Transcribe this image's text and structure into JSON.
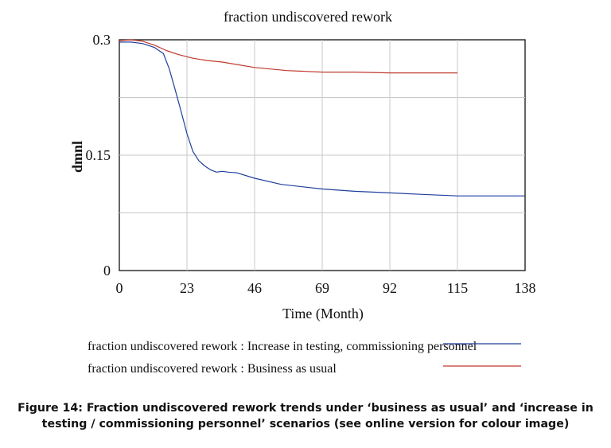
{
  "chart_data": {
    "type": "line",
    "title": "fraction undiscovered rework",
    "xlabel": "Time (Month)",
    "ylabel": "dmnl",
    "xlim": [
      0,
      138
    ],
    "ylim": [
      0,
      0.3
    ],
    "x_ticks": [
      "0",
      "23",
      "46",
      "69",
      "92",
      "115",
      "138"
    ],
    "y_ticks": [
      "0",
      "0.15",
      "0.3"
    ],
    "grid": true,
    "legend_position": "bottom",
    "series": [
      {
        "name": "fraction undiscovered rework : Increase in testing, commissioning personnel",
        "color": "#1f3f9e",
        "x": [
          0,
          4,
          8,
          12,
          15,
          17,
          19,
          21,
          23,
          25,
          27,
          29,
          31,
          33,
          35,
          37,
          40,
          46,
          55,
          69,
          80,
          92,
          103,
          115,
          126,
          138
        ],
        "y": [
          0.297,
          0.297,
          0.295,
          0.29,
          0.282,
          0.262,
          0.235,
          0.207,
          0.178,
          0.155,
          0.143,
          0.136,
          0.131,
          0.128,
          0.129,
          0.128,
          0.127,
          0.12,
          0.112,
          0.106,
          0.103,
          0.101,
          0.099,
          0.097,
          0.097,
          0.097
        ]
      },
      {
        "name": "fraction undiscovered rework : Business as usual",
        "color": "#c0392b",
        "x": [
          0,
          4,
          8,
          12,
          16,
          20,
          25,
          30,
          35,
          46,
          57,
          69,
          80,
          92,
          103,
          115
        ],
        "y": [
          0.299,
          0.3,
          0.298,
          0.293,
          0.286,
          0.281,
          0.276,
          0.273,
          0.271,
          0.264,
          0.26,
          0.258,
          0.258,
          0.257,
          0.257,
          0.257
        ]
      }
    ]
  },
  "caption": "Figure 14: Fraction undiscovered rework trends under ‘business as usual’ and ‘increase in testing / commissioning personnel’ scenarios (see online version for colour image)"
}
